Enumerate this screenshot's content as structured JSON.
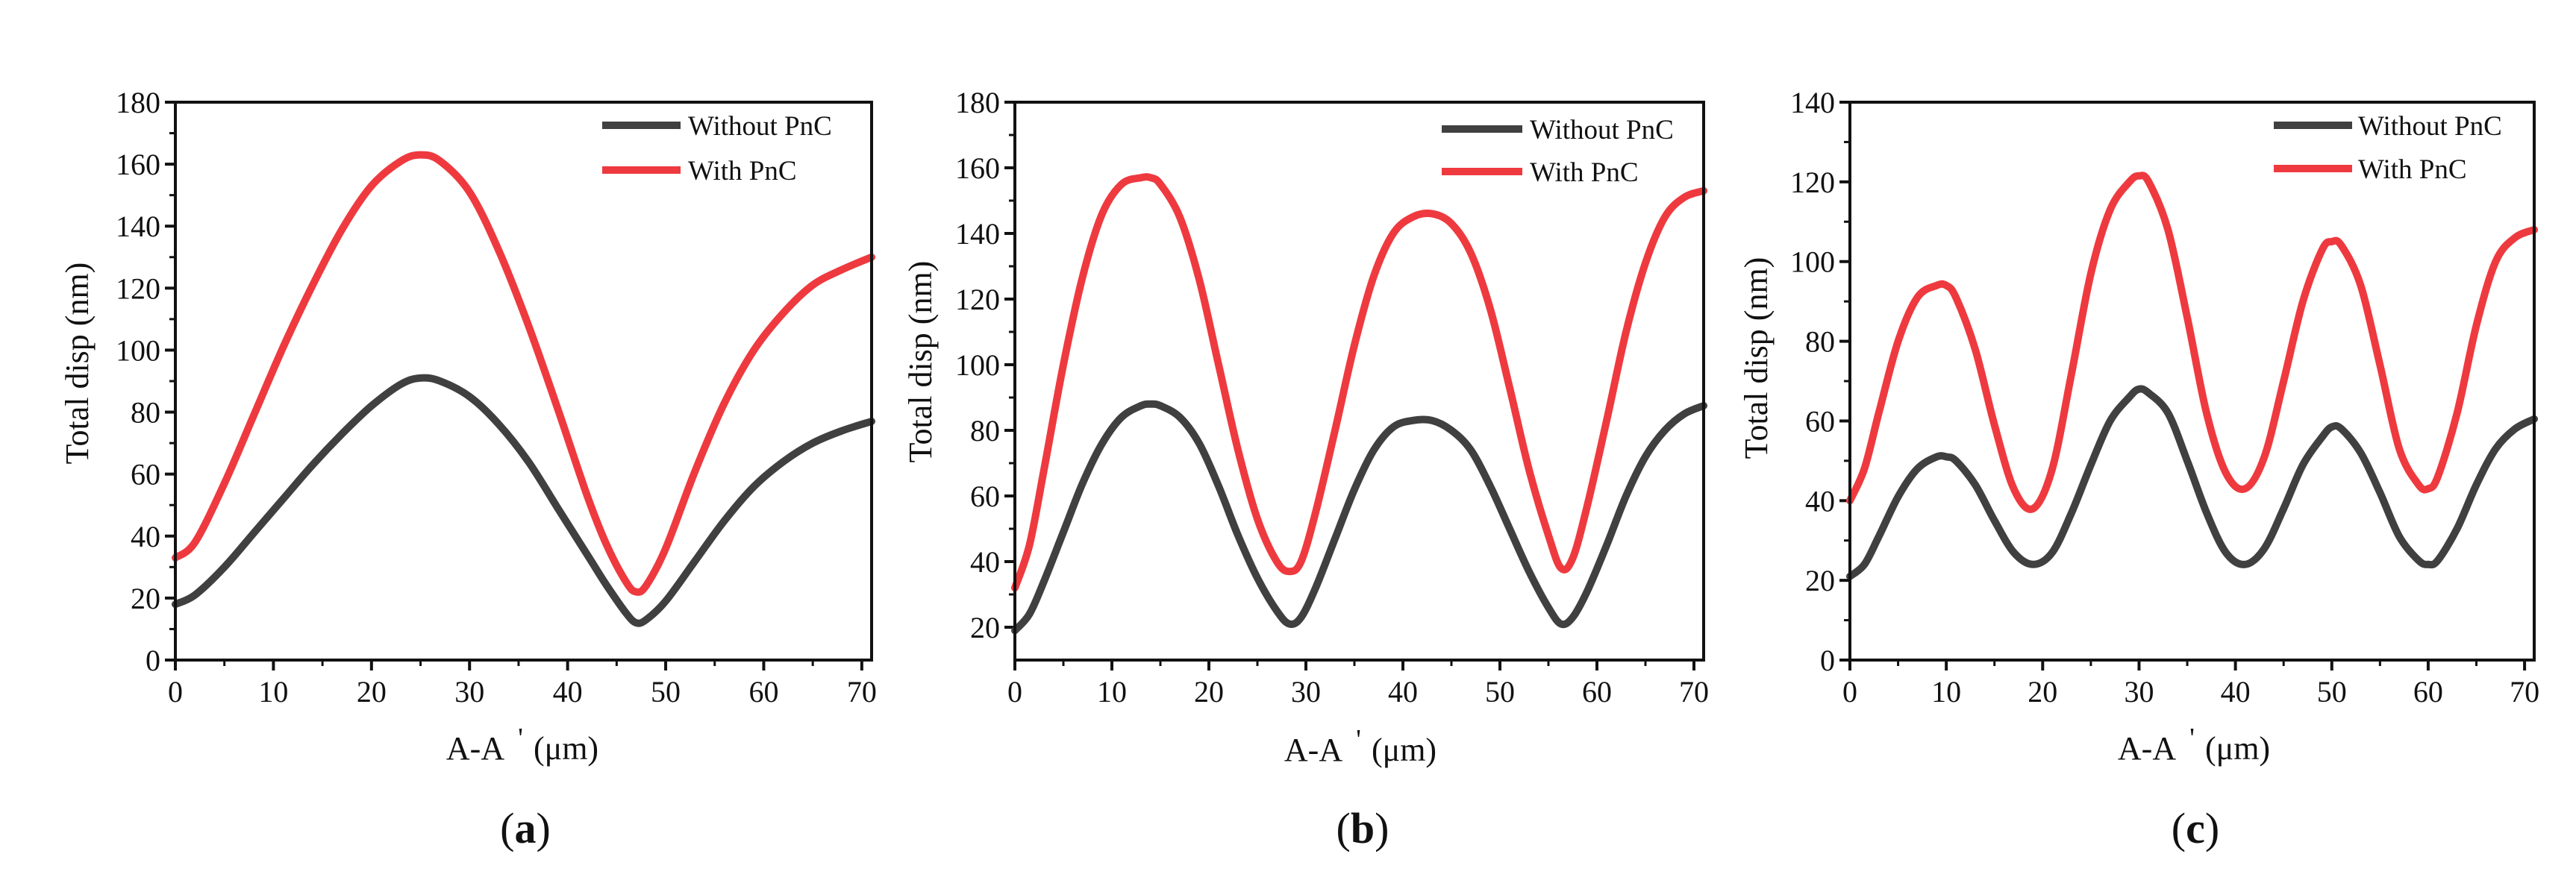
{
  "figure": {
    "panel_labels": [
      {
        "open": "(",
        "letter": "a",
        "close": ")"
      },
      {
        "open": "(",
        "letter": "b",
        "close": ")"
      },
      {
        "open": "(",
        "letter": "c",
        "close": ")"
      }
    ]
  },
  "colors": {
    "without_pnc": "#404040",
    "with_pnc": "#ee3a3f",
    "axis": "#111111"
  },
  "chart_data": [
    {
      "type": "line",
      "panel": "a",
      "title": "",
      "xlabel_main": "A-A",
      "xlabel_prime": "'",
      "xlabel_unit": "(μm)",
      "ylabel": "Total disp (nm)",
      "xlim": [
        0,
        71
      ],
      "ylim": [
        0,
        180
      ],
      "xticks": [
        0,
        10,
        20,
        30,
        40,
        50,
        60,
        70
      ],
      "yticks": [
        0,
        20,
        40,
        60,
        80,
        100,
        120,
        140,
        160,
        180
      ],
      "legend_position": "top-right",
      "series": [
        {
          "name": "Without PnC",
          "color": "#404040",
          "x": [
            0,
            2,
            5,
            8,
            11,
            14,
            17,
            20,
            23,
            25,
            27,
            30,
            33,
            36,
            39,
            42,
            44,
            46,
            47,
            48,
            50,
            53,
            56,
            59,
            62,
            65,
            68,
            71
          ],
          "y": [
            18,
            21,
            30,
            41,
            52,
            63,
            73,
            82,
            89,
            91,
            90,
            85,
            76,
            64,
            49,
            34,
            24,
            15,
            12,
            13,
            19,
            32,
            45,
            56,
            64,
            70,
            74,
            77
          ]
        },
        {
          "name": "With PnC",
          "color": "#ee3a3f",
          "x": [
            0,
            2,
            5,
            8,
            11,
            14,
            17,
            20,
            23,
            25,
            27,
            30,
            33,
            36,
            39,
            42,
            44,
            46,
            47,
            48,
            50,
            53,
            56,
            59,
            62,
            65,
            68,
            71
          ],
          "y": [
            33,
            38,
            57,
            79,
            101,
            121,
            139,
            153,
            161,
            163,
            161,
            151,
            132,
            108,
            81,
            53,
            37,
            25,
            22,
            24,
            36,
            61,
            83,
            100,
            112,
            121,
            126,
            130
          ]
        }
      ]
    },
    {
      "type": "line",
      "panel": "b",
      "title": "",
      "xlabel_main": "A-A",
      "xlabel_prime": "'",
      "xlabel_unit": "(μm)",
      "ylabel": "Total disp (nm)",
      "xlim": [
        0,
        71
      ],
      "ylim": [
        10,
        180
      ],
      "xticks": [
        0,
        10,
        20,
        30,
        40,
        50,
        60,
        70
      ],
      "yticks": [
        20,
        40,
        60,
        80,
        100,
        120,
        140,
        160,
        180
      ],
      "legend_position": "top-right",
      "series": [
        {
          "name": "Without PnC",
          "color": "#404040",
          "x": [
            0,
            1.5,
            3,
            5,
            7,
            9,
            11,
            13,
            14,
            15,
            17,
            19,
            21,
            23,
            25,
            27,
            28.3,
            29.5,
            31,
            33,
            35,
            37,
            39,
            41,
            43,
            45,
            47,
            49,
            51,
            53,
            55,
            56.3,
            57.5,
            59,
            61,
            63,
            65,
            67,
            69,
            71
          ],
          "y": [
            19,
            24,
            34,
            49,
            64,
            76,
            84,
            87.5,
            88,
            87.5,
            84,
            76,
            63,
            48,
            35,
            25,
            21,
            23,
            32,
            47,
            62,
            74,
            81,
            83,
            83,
            80,
            74,
            63,
            50,
            37,
            26,
            21,
            23,
            31,
            45,
            60,
            72,
            80,
            85,
            87.5
          ]
        },
        {
          "name": "With PnC",
          "color": "#ee3a3f",
          "x": [
            0,
            1.5,
            3,
            5,
            7,
            9,
            11,
            13,
            14,
            15,
            17,
            19,
            21,
            23,
            25,
            27,
            28.3,
            29.5,
            31,
            33,
            35,
            37,
            39,
            41,
            43,
            45,
            47,
            49,
            51,
            53,
            55,
            56.3,
            57.5,
            59,
            61,
            63,
            65,
            67,
            69,
            71
          ],
          "y": [
            32,
            45,
            68,
            100,
            127,
            146,
            155,
            157,
            157,
            155,
            145,
            126,
            100,
            74,
            53,
            40,
            37,
            40,
            55,
            80,
            106,
            127,
            140,
            145,
            146,
            143,
            134,
            117,
            93,
            68,
            48,
            38,
            41,
            57,
            83,
            110,
            131,
            145,
            151,
            153
          ]
        }
      ]
    },
    {
      "type": "line",
      "panel": "c",
      "title": "",
      "xlabel_main": "A-A",
      "xlabel_prime": "'",
      "xlabel_unit": "(μm)",
      "ylabel": "Total disp (nm)",
      "xlim": [
        0,
        71
      ],
      "ylim": [
        0,
        140
      ],
      "xticks": [
        0,
        10,
        20,
        30,
        40,
        50,
        60,
        70
      ],
      "yticks": [
        0,
        20,
        40,
        60,
        80,
        100,
        120,
        140
      ],
      "legend_position": "top-right",
      "series": [
        {
          "name": "Without PnC",
          "color": "#404040",
          "x": [
            0,
            1.5,
            3,
            5,
            7,
            9,
            10,
            11,
            13,
            15,
            17,
            19,
            21,
            23,
            25,
            27,
            29,
            30,
            31,
            33,
            35,
            37,
            39,
            41,
            43,
            45,
            47,
            49,
            50,
            51,
            53,
            55,
            57,
            59,
            60,
            61,
            63,
            65,
            67,
            69,
            71
          ],
          "y": [
            21,
            24,
            31,
            41,
            48,
            51,
            51,
            50,
            44,
            35,
            27,
            24,
            27,
            37,
            49,
            60,
            66,
            68,
            67,
            62,
            50,
            37,
            27,
            24,
            28,
            38,
            49,
            56,
            58.5,
            58,
            52,
            42,
            31,
            25,
            24,
            25,
            33,
            44,
            53,
            58,
            60.5
          ]
        },
        {
          "name": "With PnC",
          "color": "#ee3a3f",
          "x": [
            0,
            1.5,
            3,
            5,
            7,
            9,
            10,
            11,
            13,
            15,
            17,
            19,
            21,
            23,
            25,
            27,
            29,
            30,
            31,
            33,
            35,
            37,
            39,
            41,
            43,
            45,
            47,
            49,
            50,
            51,
            53,
            55,
            57,
            59,
            60,
            61,
            63,
            65,
            67,
            69,
            71
          ],
          "y": [
            40,
            48,
            62,
            80,
            91,
            94,
            94,
            91,
            78,
            59,
            43,
            38,
            48,
            72,
            97,
            113,
            120,
            121.5,
            120,
            108,
            86,
            62,
            47,
            43,
            51,
            70,
            90,
            103,
            105,
            104,
            94,
            74,
            53,
            44,
            43,
            46,
            62,
            84,
            100,
            106,
            108
          ]
        }
      ]
    }
  ]
}
